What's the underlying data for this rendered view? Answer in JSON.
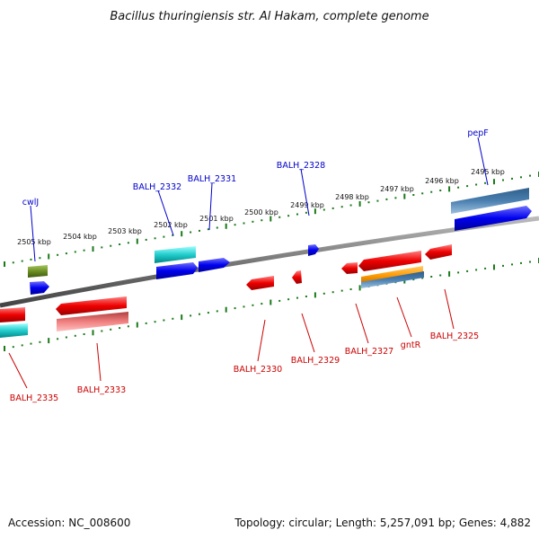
{
  "title": "Bacillus thuringiensis str. Al Hakam, complete genome",
  "footer": {
    "accession": "Accession: NC_008600",
    "topology": "Topology: circular; Length: 5,257,091 bp; Genes: 4,882"
  },
  "scale": {
    "ticks": [
      {
        "label": "2505 kbp"
      },
      {
        "label": "2504 kbp"
      },
      {
        "label": "2503 kbp"
      },
      {
        "label": "2502 kbp"
      },
      {
        "label": "2501 kbp"
      },
      {
        "label": "2500 kbp"
      },
      {
        "label": "2499 kbp"
      },
      {
        "label": "2498 kbp"
      },
      {
        "label": "2497 kbp"
      },
      {
        "label": "2496 kbp"
      },
      {
        "label": "2495 kbp"
      }
    ]
  },
  "gene_labels": {
    "forward": [
      "cwlJ",
      "BALH_2332",
      "BALH_2331",
      "BALH_2328",
      "pepF"
    ],
    "reverse": [
      "BALH_2335",
      "BALH_2333",
      "BALH_2330",
      "BALH_2329",
      "BALH_2327",
      "gntR",
      "BALH_2325"
    ]
  },
  "colors": {
    "forward_label": "#0000cc",
    "reverse_label": "#cc0000",
    "backbone": "#777777",
    "tick": "#1a7a1a",
    "forward_gene": "#0000ee",
    "reverse_gene": "#ee0000",
    "cyan_gene": "#22cccc",
    "steel_gene": "#4a7fb0",
    "olive_gene": "#6b8e23",
    "pink_gene": "#f08080",
    "orange_gene": "#ff9900"
  }
}
